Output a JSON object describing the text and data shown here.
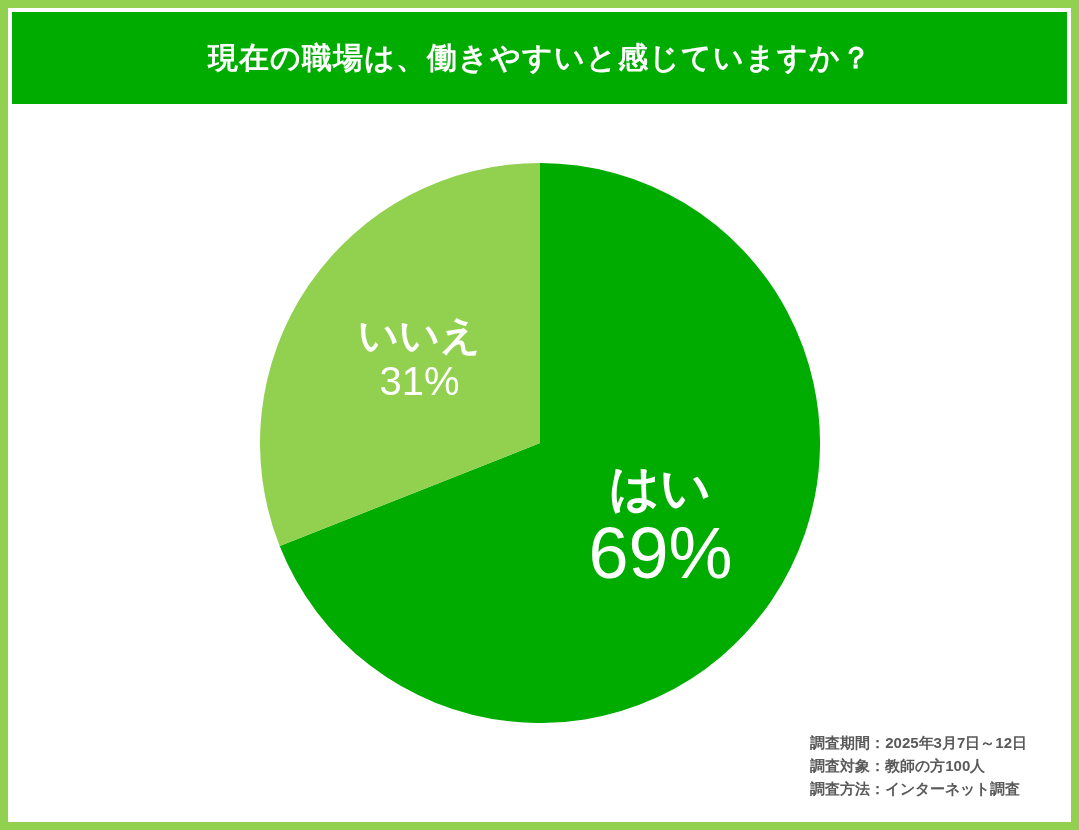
{
  "chart_data": {
    "type": "pie",
    "title": "現在の職場は、働きやすいと感じていますか？",
    "categories": [
      "はい",
      "いいえ"
    ],
    "values": [
      69,
      31
    ],
    "value_labels": [
      "69%",
      "31%"
    ],
    "colors": [
      "#00ac00",
      "#92d050"
    ],
    "legend": false,
    "annotations": [
      "調査期間：2025年3月7日～12日",
      "調査対象：教師の方100人",
      "調査方法：インターネット調査"
    ]
  }
}
